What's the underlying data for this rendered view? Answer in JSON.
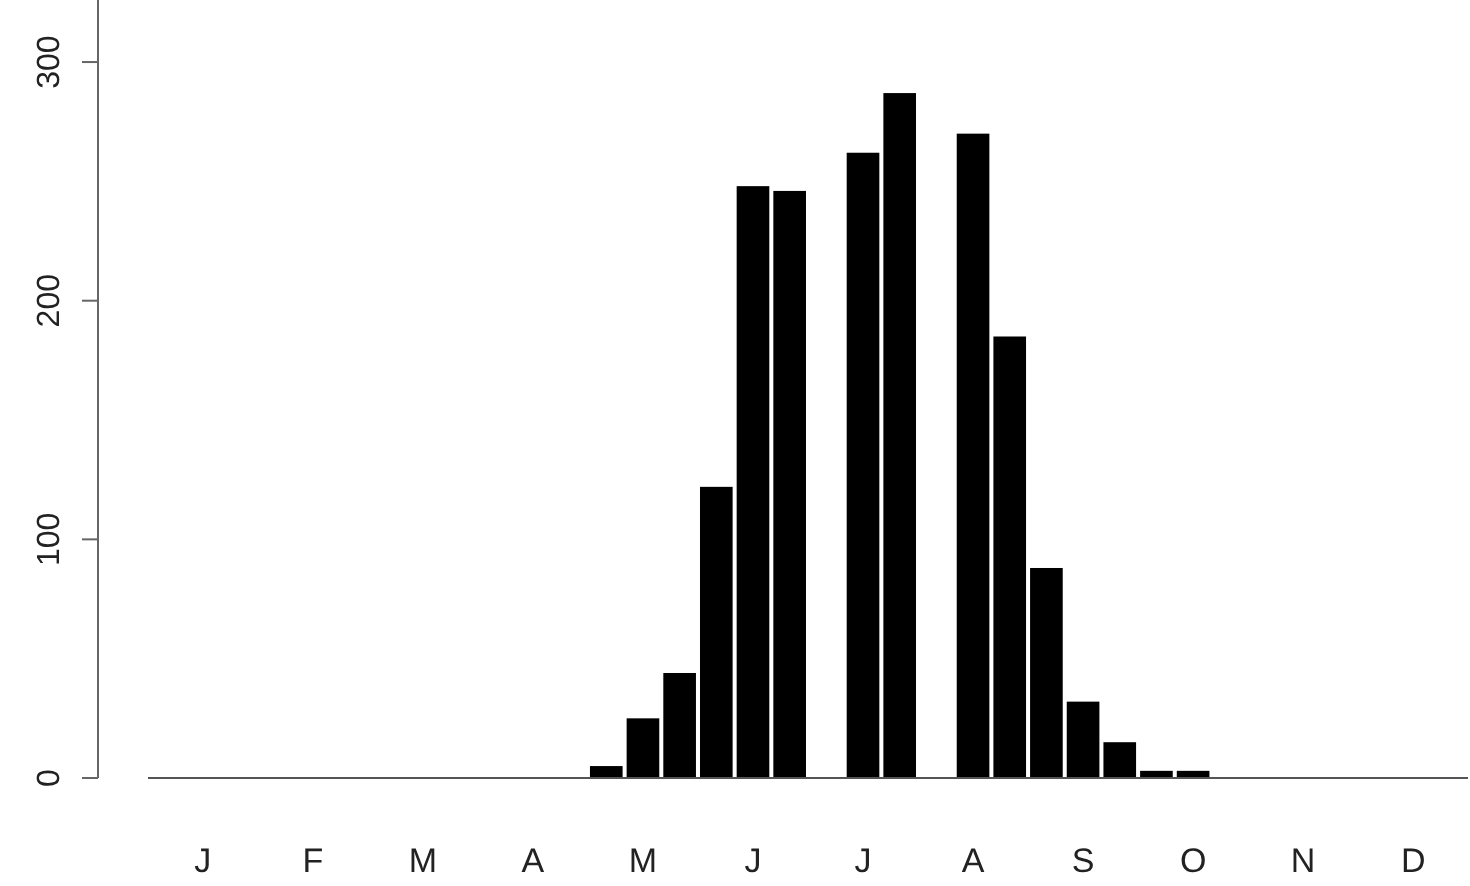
{
  "chart_data": {
    "type": "bar",
    "categories": [
      null,
      "J",
      null,
      null,
      "F",
      null,
      null,
      "M",
      null,
      null,
      "A",
      null,
      null,
      "M",
      null,
      null,
      "J",
      null,
      null,
      "J",
      null,
      null,
      "A",
      null,
      null,
      "S",
      null,
      null,
      "O",
      null,
      null,
      "N",
      null,
      null,
      "D",
      null
    ],
    "values": [
      0,
      0,
      0,
      0,
      0,
      0,
      0,
      0,
      0,
      0,
      0,
      0,
      5,
      25,
      44,
      122,
      248,
      246,
      null,
      262,
      287,
      null,
      270,
      185,
      88,
      32,
      15,
      3,
      3,
      null,
      0,
      0,
      0,
      0,
      0,
      0
    ],
    "color": "#000000",
    "ylim": [
      0,
      326
    ],
    "yticks": [
      0,
      100,
      200,
      300
    ],
    "grid": false
  }
}
